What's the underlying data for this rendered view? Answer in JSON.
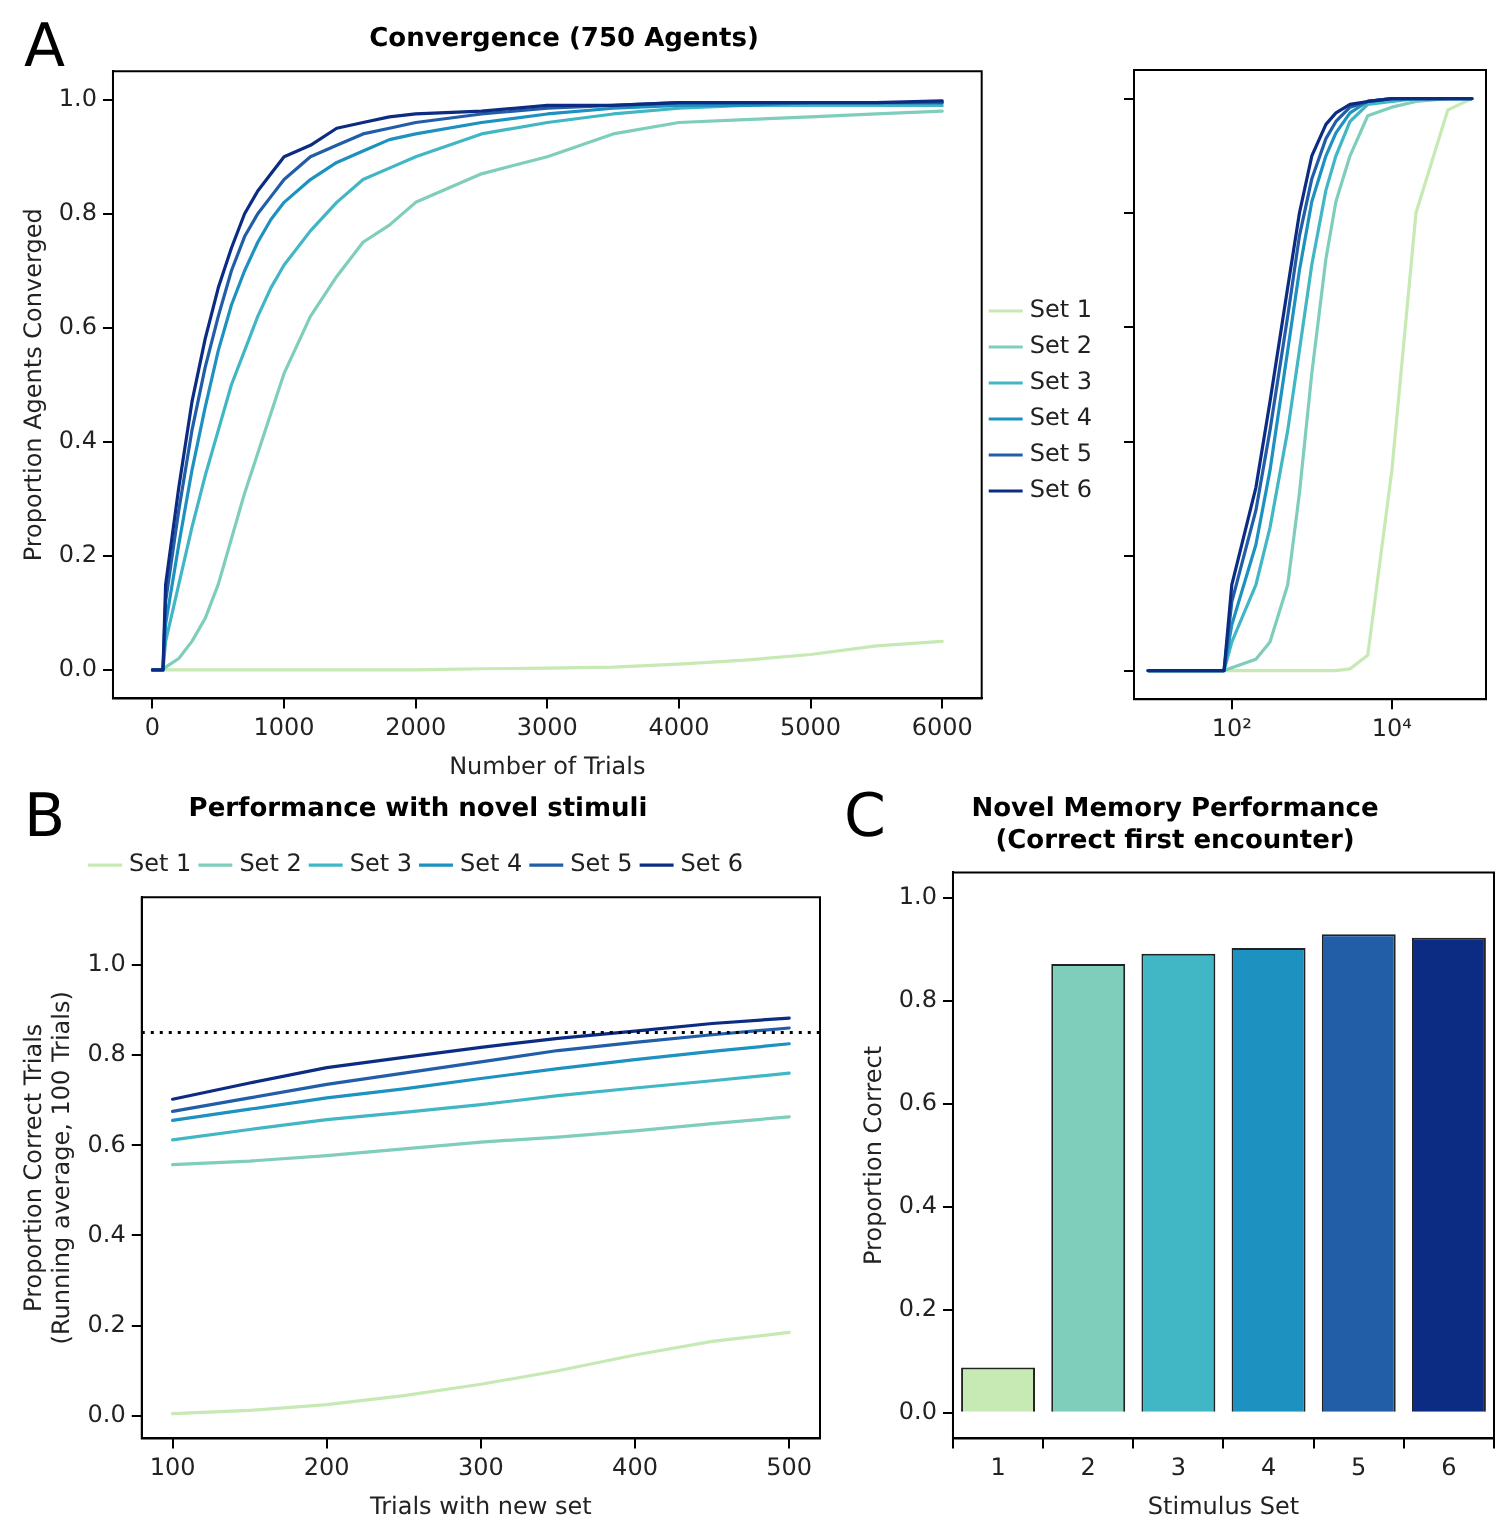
{
  "chart_data": [
    {
      "type": "line",
      "title": "Convergence (750 Agents)",
      "xlabel": "Number of Trials",
      "ylabel": "Proportion Agents Converged",
      "annotations": [
        "A"
      ],
      "legend": "right",
      "xlim": [
        -300,
        6300
      ],
      "xticks": [
        0,
        1000,
        2000,
        3000,
        4000,
        5000,
        6000
      ],
      "ylim": [
        -0.05,
        1.05
      ],
      "yticks": [
        {
          "value": 0,
          "label": "0.0"
        },
        {
          "value": 0.2,
          "label": "0.2"
        },
        {
          "value": 0.4,
          "label": "0.4"
        },
        {
          "value": 0.6,
          "label": "0.6"
        },
        {
          "value": 0.8,
          "label": "0.8"
        },
        {
          "value": 1,
          "label": "1.0"
        }
      ],
      "x": [
        0,
        80,
        100,
        200,
        300,
        400,
        500,
        600,
        700,
        800,
        900,
        1000,
        1200,
        1400,
        1600,
        1800,
        2000,
        2500,
        3000,
        3500,
        4000,
        4500,
        5000,
        5500,
        6000
      ],
      "series": [
        {
          "name": "Set 1",
          "color": "#c7e9b4",
          "values": [
            0,
            0,
            0,
            0,
            0,
            0,
            0,
            0,
            0,
            0,
            0,
            0,
            0,
            0,
            0,
            0,
            0,
            0.002,
            0.003,
            0.005,
            0.01,
            0.017,
            0.027,
            0.042,
            0.05
          ]
        },
        {
          "name": "Set 2",
          "color": "#7fcdbb",
          "values": [
            0,
            0,
            0.005,
            0.02,
            0.05,
            0.09,
            0.15,
            0.23,
            0.31,
            0.38,
            0.45,
            0.52,
            0.62,
            0.69,
            0.75,
            0.78,
            0.82,
            0.87,
            0.9,
            0.94,
            0.96,
            0.965,
            0.97,
            0.975,
            0.98
          ]
        },
        {
          "name": "Set 3",
          "color": "#41b6c4",
          "values": [
            0,
            0,
            0.05,
            0.15,
            0.25,
            0.34,
            0.42,
            0.5,
            0.56,
            0.62,
            0.67,
            0.71,
            0.77,
            0.82,
            0.86,
            0.88,
            0.9,
            0.94,
            0.96,
            0.975,
            0.985,
            0.99,
            0.99,
            0.99,
            0.99
          ]
        },
        {
          "name": "Set 4",
          "color": "#1d91c0",
          "values": [
            0,
            0,
            0.08,
            0.22,
            0.35,
            0.46,
            0.56,
            0.64,
            0.7,
            0.75,
            0.79,
            0.82,
            0.86,
            0.89,
            0.91,
            0.93,
            0.94,
            0.96,
            0.975,
            0.985,
            0.99,
            0.99,
            0.995,
            0.995,
            0.995
          ]
        },
        {
          "name": "Set 5",
          "color": "#225ea8",
          "values": [
            0,
            0,
            0.12,
            0.28,
            0.42,
            0.53,
            0.62,
            0.7,
            0.76,
            0.8,
            0.83,
            0.86,
            0.9,
            0.92,
            0.94,
            0.95,
            0.96,
            0.975,
            0.985,
            0.99,
            0.995,
            0.995,
            0.995,
            0.995,
            0.995
          ]
        },
        {
          "name": "Set 6",
          "color": "#0c2c84",
          "values": [
            0,
            0,
            0.15,
            0.32,
            0.47,
            0.58,
            0.67,
            0.74,
            0.8,
            0.84,
            0.87,
            0.9,
            0.92,
            0.95,
            0.96,
            0.97,
            0.975,
            0.98,
            0.99,
            0.99,
            0.995,
            0.995,
            0.995,
            0.995,
            0.998
          ]
        }
      ]
    },
    {
      "type": "line",
      "log": "x",
      "tick_labels": "x",
      "xlim": [
        6,
        150000
      ],
      "xticks": [
        {
          "value": 100,
          "label": "10²"
        },
        {
          "value": 10000,
          "label": "10⁴"
        }
      ],
      "ylim": [
        -0.05,
        1.05
      ],
      "yticks": [
        {
          "value": 0,
          "label": null
        },
        {
          "value": 0.2,
          "label": null
        },
        {
          "value": 0.4,
          "label": null
        },
        {
          "value": 0.6,
          "label": null
        },
        {
          "value": 0.8,
          "label": null
        },
        {
          "value": 1.0,
          "label": null
        }
      ],
      "x": [
        9,
        80,
        100,
        200,
        300,
        500,
        700,
        1000,
        1500,
        2000,
        3000,
        5000,
        10000,
        20000,
        50000,
        100000
      ],
      "series": [
        {
          "color": "#c7e9b4",
          "values": [
            0,
            0,
            0,
            0,
            0,
            0,
            0,
            0,
            0,
            0,
            0.003,
            0.027,
            0.35,
            0.8,
            0.98,
            1.0
          ]
        },
        {
          "color": "#7fcdbb",
          "values": [
            0,
            0,
            0.005,
            0.02,
            0.05,
            0.15,
            0.31,
            0.52,
            0.72,
            0.82,
            0.9,
            0.97,
            0.985,
            0.995,
            1.0,
            1.0
          ]
        },
        {
          "color": "#41b6c4",
          "values": [
            0,
            0,
            0.05,
            0.15,
            0.25,
            0.42,
            0.56,
            0.71,
            0.84,
            0.9,
            0.96,
            0.99,
            0.995,
            1.0,
            1.0,
            1.0
          ]
        },
        {
          "color": "#1d91c0",
          "values": [
            0,
            0,
            0.08,
            0.22,
            0.35,
            0.56,
            0.7,
            0.82,
            0.9,
            0.94,
            0.975,
            0.995,
            1.0,
            1.0,
            1.0,
            1.0
          ]
        },
        {
          "color": "#225ea8",
          "values": [
            0,
            0,
            0.12,
            0.28,
            0.42,
            0.62,
            0.76,
            0.86,
            0.93,
            0.96,
            0.985,
            0.995,
            1.0,
            1.0,
            1.0,
            1.0
          ]
        },
        {
          "color": "#0c2c84",
          "values": [
            0,
            0,
            0.15,
            0.32,
            0.47,
            0.67,
            0.8,
            0.9,
            0.955,
            0.975,
            0.99,
            0.995,
            1.0,
            1.0,
            1.0,
            1.0
          ]
        }
      ]
    },
    {
      "type": "line",
      "title": "Performance with novel stimuli",
      "xlabel": "Trials with new set",
      "ylabel": "Proportion Correct Trials\n(Running average, 100 Trials)",
      "annotations": [
        "B"
      ],
      "legend": "top",
      "xlim": [
        80,
        520
      ],
      "xticks": [
        100,
        200,
        300,
        400,
        500
      ],
      "ylim": [
        -0.05,
        1.15
      ],
      "yticks": [
        {
          "value": 0,
          "label": "0.0"
        },
        {
          "value": 0.2,
          "label": "0.2"
        },
        {
          "value": 0.4,
          "label": "0.4"
        },
        {
          "value": 0.6,
          "label": "0.6"
        },
        {
          "value": 0.8,
          "label": "0.8"
        },
        {
          "value": 1,
          "label": "1.0"
        }
      ],
      "ref_lines": [
        {
          "axis": "y",
          "value": 0.85,
          "color": "#000000",
          "line_style": "dotted"
        }
      ],
      "x": [
        100,
        150,
        200,
        250,
        300,
        350,
        400,
        450,
        500
      ],
      "series": [
        {
          "name": "Set 1",
          "color": "#c7e9b4",
          "values": [
            0.005,
            0.012,
            0.025,
            0.045,
            0.07,
            0.1,
            0.135,
            0.165,
            0.185
          ]
        },
        {
          "name": "Set 2",
          "color": "#7fcdbb",
          "values": [
            0.557,
            0.565,
            0.577,
            0.592,
            0.607,
            0.618,
            0.632,
            0.648,
            0.663
          ]
        },
        {
          "name": "Set 3",
          "color": "#41b6c4",
          "values": [
            0.612,
            0.635,
            0.657,
            0.673,
            0.69,
            0.71,
            0.727,
            0.743,
            0.76
          ]
        },
        {
          "name": "Set 4",
          "color": "#1d91c0",
          "values": [
            0.655,
            0.68,
            0.705,
            0.725,
            0.748,
            0.77,
            0.79,
            0.808,
            0.825
          ]
        },
        {
          "name": "Set 5",
          "color": "#225ea8",
          "values": [
            0.675,
            0.705,
            0.735,
            0.76,
            0.785,
            0.81,
            0.828,
            0.845,
            0.86
          ]
        },
        {
          "name": "Set 6",
          "color": "#0c2c84",
          "values": [
            0.702,
            0.738,
            0.772,
            0.795,
            0.817,
            0.837,
            0.853,
            0.87,
            0.882
          ]
        }
      ]
    },
    {
      "type": "bar",
      "title": "Novel Memory Performance\n(Correct first encounter)",
      "xlabel": "Stimulus Set",
      "ylabel": "Proportion Correct",
      "annotations": [
        "C"
      ],
      "ylim": [
        -0.05,
        1.05
      ],
      "yticks": [
        {
          "value": 0,
          "label": "0.0"
        },
        {
          "value": 0.2,
          "label": "0.2"
        },
        {
          "value": 0.4,
          "label": "0.4"
        },
        {
          "value": 0.6,
          "label": "0.6"
        },
        {
          "value": 0.8,
          "label": "0.8"
        },
        {
          "value": 1,
          "label": "1.0"
        }
      ],
      "categories": [
        "1",
        "2",
        "3",
        "4",
        "5",
        "6"
      ],
      "values": [
        0.088,
        0.872,
        0.892,
        0.903,
        0.93,
        0.923
      ],
      "colors": [
        "#c7e9b4",
        "#7fcdbb",
        "#41b6c4",
        "#1d91c0",
        "#225ea8",
        "#0c2c84"
      ]
    }
  ]
}
